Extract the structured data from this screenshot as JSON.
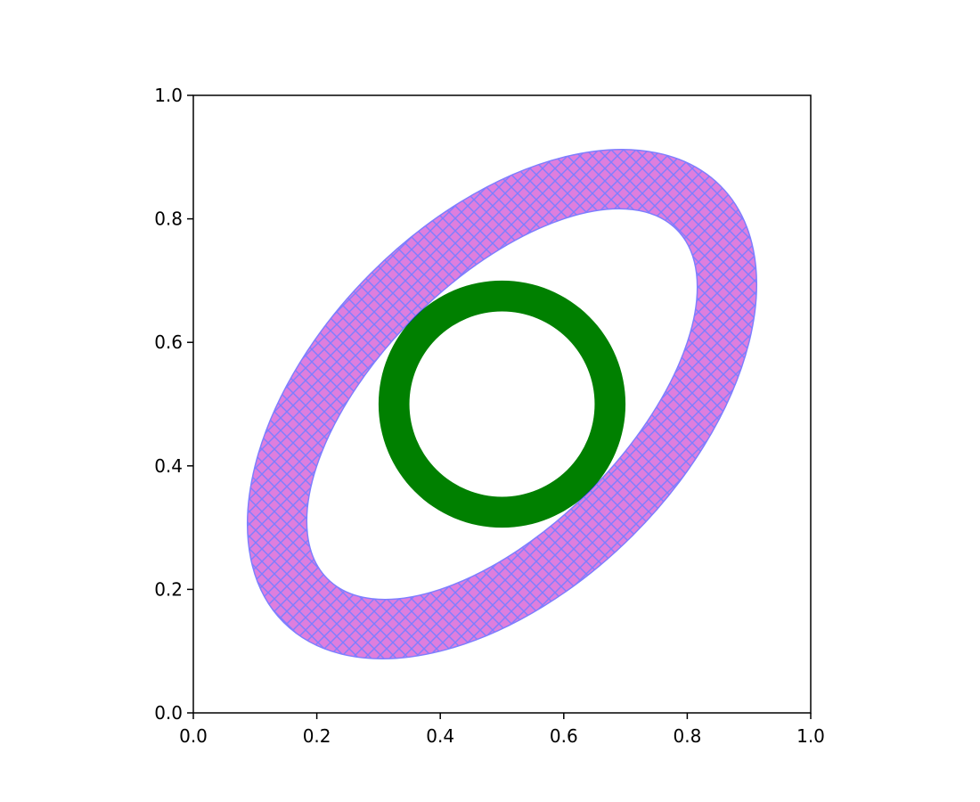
{
  "chart_data": {
    "type": "annulus",
    "xlim": [
      0,
      1
    ],
    "ylim": [
      0,
      1
    ],
    "xticks": [
      {
        "value": 0,
        "label": "0.0"
      },
      0.2,
      0.4,
      0.6,
      0.8,
      {
        "value": 1,
        "label": "1.0"
      }
    ],
    "yticks": [
      {
        "value": 0,
        "label": "0.0"
      },
      0.2,
      0.4,
      0.6,
      0.8,
      {
        "value": 1,
        "label": "1.0"
      }
    ],
    "shapes": [
      {
        "center": [
          0.5,
          0.5
        ],
        "r": 0.2,
        "width": 0.05,
        "color": "#008000"
      },
      {
        "center": [
          0.5,
          0.5
        ],
        "r": [
          0.5,
          0.3
        ],
        "width": 0.1,
        "angle": 45,
        "color": "#bf00bf",
        "edgecolor": "#0000ff",
        "alpha": 0.5,
        "hatch": "xxx"
      }
    ]
  }
}
